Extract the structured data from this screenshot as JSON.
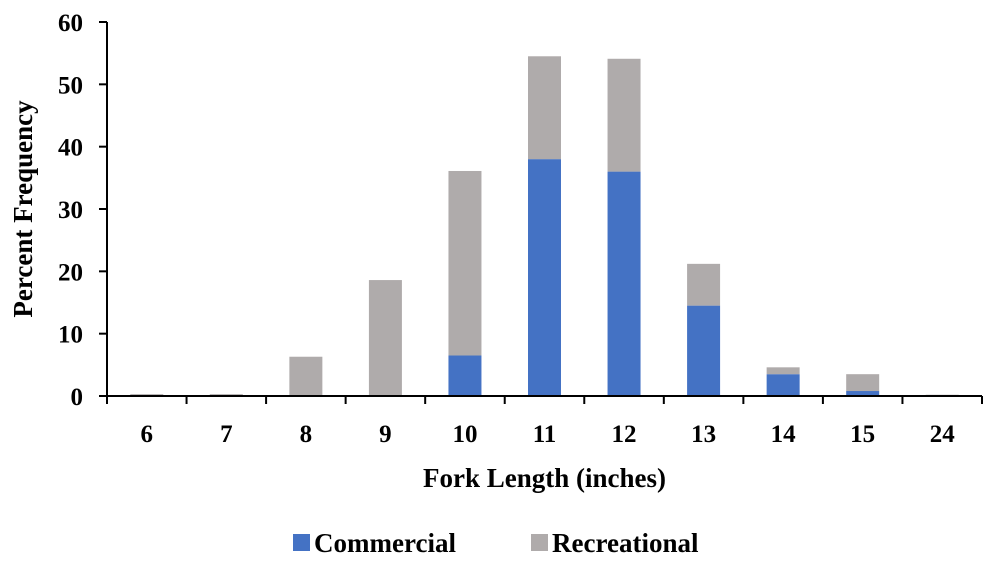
{
  "chart_data": {
    "type": "bar",
    "stacked": true,
    "xlabel": "Fork Length (inches)",
    "ylabel": "Percent Frequency",
    "ylim": [
      0,
      60
    ],
    "yticks": [
      0,
      10,
      20,
      30,
      40,
      50,
      60
    ],
    "categories": [
      "6",
      "7",
      "8",
      "9",
      "10",
      "11",
      "12",
      "13",
      "14",
      "15",
      "24"
    ],
    "series": [
      {
        "name": "Commercial",
        "color": "#4472C4",
        "values": [
          0,
          0,
          0,
          0,
          6.5,
          38.0,
          36.0,
          14.5,
          3.5,
          0.8,
          0
        ]
      },
      {
        "name": "Recreational",
        "color": "#AFABAB",
        "values": [
          0.3,
          0.3,
          6.3,
          18.6,
          29.6,
          16.5,
          18.1,
          6.7,
          1.1,
          2.7,
          0.2
        ]
      }
    ],
    "legend_position": "bottom",
    "grid": false
  }
}
